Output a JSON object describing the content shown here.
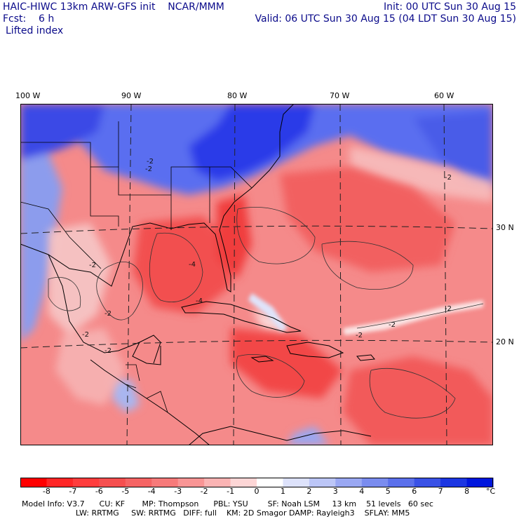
{
  "header": {
    "title": "HAIC-HIWC 13km ARW-GFS init    NCAR/MMM",
    "init": "Init: 00 UTC Sun 30 Aug 15",
    "fcst": "Fcst:    6 h",
    "valid": "Valid: 06 UTC Sun 30 Aug 15 (04 LDT Sun 30 Aug 15)",
    "field": "Lifted index"
  },
  "map": {
    "lon_labels": [
      "100 W",
      "90 W",
      "80 W",
      "70 W",
      "60 W"
    ],
    "lat_labels": [
      "30 N",
      "20 N"
    ],
    "contour_labels": [
      "-2",
      "-2",
      "-2",
      "-4",
      "-2",
      "-2",
      "-2",
      "-2",
      "-4",
      "-2",
      "-2",
      "-2"
    ],
    "colors": {
      "neg_strong": "#ff3a3a",
      "neg_mid": "#f26464",
      "neg_light": "#f8b0b0",
      "neutral": "#fbe6e6",
      "pos_light": "#c8d2f8",
      "pos_strong": "#2a3ae8"
    }
  },
  "colorbar": {
    "ticks": [
      "-8",
      "-7",
      "-6",
      "-5",
      "-4",
      "-3",
      "-2",
      "-1",
      "0",
      "1",
      "2",
      "3",
      "4",
      "5",
      "6",
      "7",
      "8"
    ],
    "unit": "°C",
    "colors": [
      "#ff0000",
      "#ff2626",
      "#ff3d3d",
      "#f54f4f",
      "#f56464",
      "#f77a7a",
      "#f99595",
      "#fbb4b4",
      "#fdd6d6",
      "#ffffff",
      "#dde2fb",
      "#bcc6f7",
      "#9aa8f3",
      "#7a8cef",
      "#5b70eb",
      "#3a52e6",
      "#1c36e2",
      "#0016dd"
    ]
  },
  "model_info": {
    "line1": "Model Info: V3.7      CU: KF       MP: Thompson      PBL: YSU        SF: Noah LSM     13 km    51 levels   60 sec",
    "line2": "                      LW: RRTMG     SW: RRTMG   DIFF: full    KM: 2D Smagor DAMP: Rayleigh3    SFLAY: MM5"
  }
}
